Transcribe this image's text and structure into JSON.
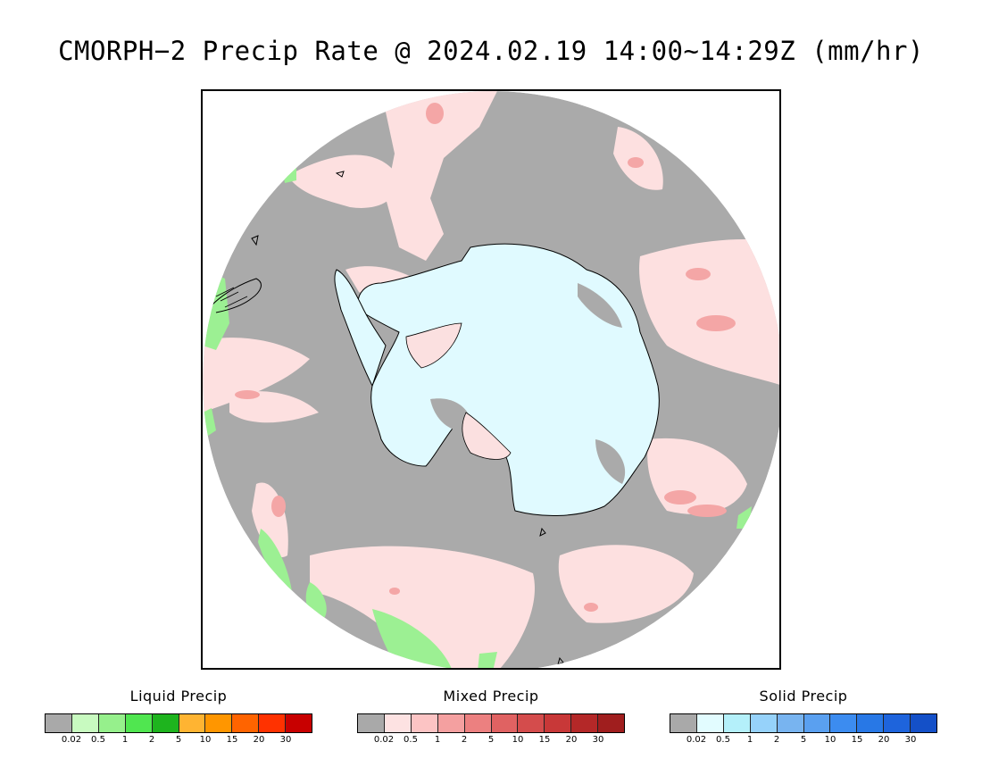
{
  "title": "CMORPH−2 Precip Rate @ 2024.02.19 14:00~14:29Z (mm/hr)",
  "map": {
    "projection": "south-polar-stereographic",
    "region": "Antarctica / Southern Ocean",
    "colors": {
      "no_precip": "#aaaaaa",
      "light_mixed": "#fde0e0",
      "ice": "#e0faff",
      "coast": "#000000"
    }
  },
  "legends": [
    {
      "title": "Liquid Precip",
      "colors": [
        "#a9a9a9",
        "#c8fac0",
        "#96f08c",
        "#50e650",
        "#1eb41e",
        "#ffb432",
        "#ff9600",
        "#ff6400",
        "#ff3200",
        "#c80000"
      ],
      "ticks": [
        "0.02",
        "0.5",
        "1",
        "2",
        "5",
        "10",
        "15",
        "20",
        "30"
      ]
    },
    {
      "title": "Mixed Precip",
      "colors": [
        "#a9a9a9",
        "#fde2e2",
        "#fcc4c4",
        "#f4a0a0",
        "#ec8080",
        "#e06262",
        "#d44c4c",
        "#c83838",
        "#b42828",
        "#a01e1e"
      ],
      "ticks": [
        "0.02",
        "0.5",
        "1",
        "2",
        "5",
        "10",
        "15",
        "20",
        "30"
      ]
    },
    {
      "title": "Solid Precip",
      "colors": [
        "#a9a9a9",
        "#e2fcff",
        "#b4f0fa",
        "#96d2fa",
        "#78b4f0",
        "#5aa0f0",
        "#3c8cf0",
        "#2878e6",
        "#1e64dc",
        "#1450c8"
      ],
      "ticks": [
        "0.02",
        "0.5",
        "1",
        "2",
        "5",
        "10",
        "15",
        "20",
        "30"
      ]
    }
  ]
}
